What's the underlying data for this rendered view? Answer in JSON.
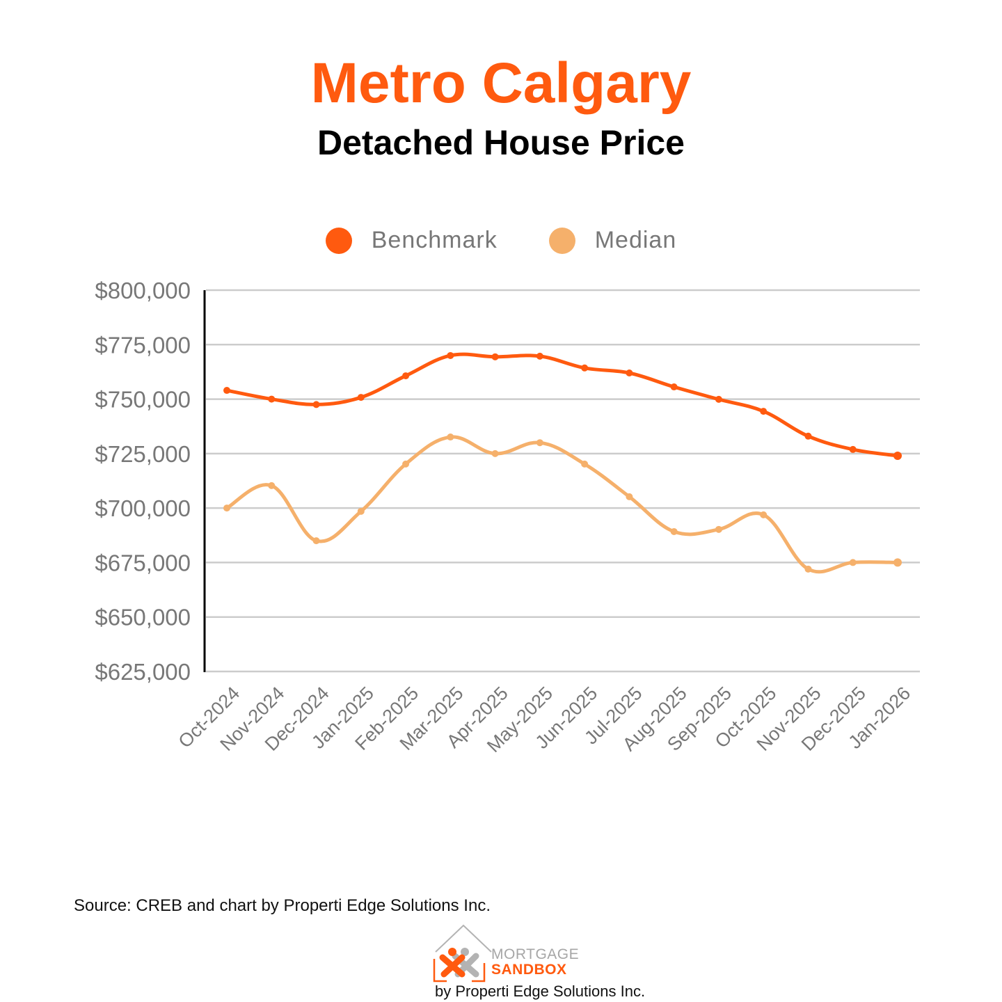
{
  "header": {
    "title": "Metro Calgary",
    "subtitle": "Detached House Price"
  },
  "legend": {
    "items": [
      {
        "label": "Benchmark",
        "color": "#ff5a0f"
      },
      {
        "label": "Median",
        "color": "#f5b06b"
      }
    ]
  },
  "footer": {
    "source": "Source: CREB and chart by Properti Edge Solutions Inc.",
    "logo_line1": "MORTGAGE",
    "logo_line2": "SANDBOX",
    "logo_by": "by Properti Edge Solutions Inc."
  },
  "colors": {
    "title": "#ff5a0f",
    "benchmark": "#ff5a0f",
    "median": "#f5b06b",
    "grid": "#cccccc",
    "axis_text": "#777777"
  },
  "chart_data": {
    "type": "line",
    "title": "Metro Calgary",
    "subtitle": "Detached House Price",
    "xlabel": "",
    "ylabel": "",
    "ylim": [
      625000,
      800000
    ],
    "yticks": [
      625000,
      650000,
      675000,
      700000,
      725000,
      750000,
      775000,
      800000
    ],
    "ytick_labels": [
      "$625,000",
      "$650,000",
      "$675,000",
      "$700,000",
      "$725,000",
      "$750,000",
      "$775,000",
      "$800,000"
    ],
    "grid": true,
    "legend_position": "top",
    "categories": [
      "Oct-2024",
      "Nov-2024",
      "Dec-2024",
      "Jan-2025",
      "Feb-2025",
      "Mar-2025",
      "Apr-2025",
      "May-2025",
      "Jun-2025",
      "Jul-2025",
      "Aug-2025",
      "Sep-2025",
      "Oct-2025",
      "Nov-2025",
      "Dec-2025",
      "Jan-2026"
    ],
    "series": [
      {
        "name": "Benchmark",
        "color": "#ff5a0f",
        "values": [
          754000,
          750000,
          747500,
          750800,
          760700,
          770000,
          769400,
          769700,
          764300,
          762000,
          755600,
          749900,
          744400,
          733000,
          726900,
          724000
        ]
      },
      {
        "name": "Median",
        "color": "#f5b06b",
        "values": [
          700000,
          710300,
          685000,
          698500,
          720200,
          732600,
          725000,
          730000,
          720200,
          705200,
          689200,
          690200,
          696900,
          672000,
          675000,
          675000
        ]
      }
    ]
  }
}
